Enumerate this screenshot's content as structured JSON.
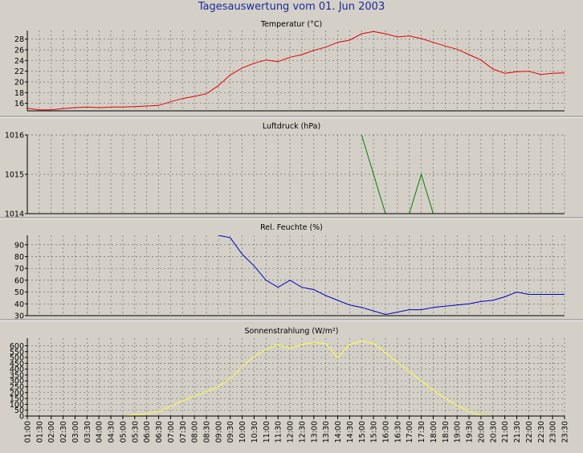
{
  "title": "Tagesauswertung vom 01. Jun 2003",
  "x_ticks": [
    "01:00",
    "01:30",
    "02:00",
    "02:30",
    "03:00",
    "03:30",
    "04:00",
    "04:30",
    "05:00",
    "05:30",
    "06:00",
    "06:30",
    "07:00",
    "07:30",
    "08:00",
    "08:30",
    "09:00",
    "09:30",
    "10:00",
    "10:30",
    "11:00",
    "11:30",
    "12:00",
    "12:30",
    "13:00",
    "13:30",
    "14:00",
    "14:30",
    "15:00",
    "15:30",
    "16:00",
    "16:30",
    "17:00",
    "17:30",
    "18:00",
    "18:30",
    "19:00",
    "19:30",
    "20:00",
    "20:30",
    "21:00",
    "21:30",
    "22:00",
    "22:30",
    "23:00",
    "23:30"
  ],
  "chart_data": [
    {
      "type": "line",
      "title": "Temperatur (°C)",
      "color": "#e00000",
      "yticks": [
        16,
        18,
        20,
        22,
        24,
        26,
        28
      ],
      "ylim": [
        14.6,
        29.6
      ],
      "xlim": [
        "01:00",
        "23:30"
      ],
      "grid": true,
      "series": [
        {
          "x": [
            "00:30",
            "01:00",
            "01:30",
            "02:00",
            "02:30",
            "03:00",
            "03:30",
            "04:00",
            "04:30",
            "05:00",
            "05:30",
            "06:00",
            "06:30",
            "07:00",
            "07:30",
            "08:00",
            "08:30",
            "09:00",
            "09:30",
            "10:00",
            "10:30",
            "11:00",
            "11:30",
            "12:00",
            "12:30",
            "13:00",
            "13:30",
            "14:00",
            "14:30",
            "15:00",
            "15:30",
            "16:00",
            "16:30",
            "17:00",
            "17:30",
            "18:00",
            "18:30",
            "19:00",
            "19:30",
            "20:00",
            "20:30",
            "21:00",
            "21:30",
            "22:00",
            "22:30",
            "23:00",
            "23:30"
          ],
          "values": [
            15.4,
            15.1,
            14.8,
            14.8,
            15.0,
            15.2,
            15.3,
            15.2,
            15.3,
            15.3,
            15.4,
            15.5,
            15.6,
            16.3,
            16.9,
            17.3,
            17.8,
            19.3,
            21.3,
            22.6,
            23.5,
            24.1,
            23.8,
            24.6,
            25.1,
            25.9,
            26.5,
            27.4,
            27.8,
            29.0,
            29.4,
            29.0,
            28.4,
            28.6,
            28.1,
            27.4,
            26.7,
            26.1,
            25.1,
            24.1,
            22.4,
            21.6,
            21.9,
            22.0,
            21.4,
            21.6,
            21.7
          ]
        }
      ]
    },
    {
      "type": "line",
      "title": "Luftdruck (hPa)",
      "color": "#008000",
      "yticks": [
        1014,
        1015,
        1016
      ],
      "ylim": [
        1014,
        1016
      ],
      "xlim": [
        "01:00",
        "23:30"
      ],
      "grid": true,
      "series": [
        {
          "x": [
            "15:00",
            "16:00"
          ],
          "values": [
            1016,
            1014
          ]
        },
        {
          "x": [
            "17:00",
            "17:30",
            "18:00"
          ],
          "values": [
            1014,
            1015,
            1014
          ]
        }
      ]
    },
    {
      "type": "line",
      "title": "Rel. Feuchte (%)",
      "color": "#0000c0",
      "yticks": [
        30,
        40,
        50,
        60,
        70,
        80,
        90
      ],
      "ylim": [
        30,
        98
      ],
      "xlim": [
        "01:00",
        "23:30"
      ],
      "grid": true,
      "series": [
        {
          "x": [
            "09:00",
            "09:30",
            "10:00",
            "10:30",
            "11:00",
            "11:30",
            "12:00",
            "12:30",
            "13:00",
            "13:30",
            "14:00",
            "14:30",
            "15:00",
            "15:30",
            "16:00",
            "16:30",
            "17:00",
            "17:30",
            "18:00",
            "18:30",
            "19:00",
            "19:30",
            "20:00",
            "20:30",
            "21:00",
            "21:30",
            "22:00",
            "22:30",
            "23:00",
            "23:30"
          ],
          "values": [
            98,
            96,
            82,
            72,
            60,
            54,
            60,
            54,
            52,
            47,
            43,
            39,
            37,
            34,
            31,
            33,
            35,
            35,
            37,
            38,
            39,
            40,
            42,
            43,
            46,
            50,
            48,
            48,
            48,
            48
          ]
        }
      ]
    },
    {
      "type": "line",
      "title": "Sonnenstrahlung (W/m²)",
      "color": "#ffff40",
      "yticks": [
        0,
        50,
        100,
        150,
        200,
        250,
        300,
        350,
        400,
        450,
        500,
        550,
        600
      ],
      "ylim": [
        0,
        665
      ],
      "xlim": [
        "01:00",
        "23:30"
      ],
      "grid": true,
      "series": [
        {
          "x": [
            "05:00",
            "05:30",
            "06:00",
            "06:30",
            "07:00",
            "07:30",
            "08:00",
            "08:30",
            "09:00",
            "09:30",
            "10:00",
            "10:30",
            "11:00",
            "11:30",
            "12:00",
            "12:30",
            "13:00",
            "13:30",
            "14:00",
            "14:30",
            "15:00",
            "15:30",
            "16:00",
            "16:30",
            "17:00",
            "17:30",
            "18:00",
            "18:30",
            "19:00",
            "19:30",
            "20:00",
            "20:30"
          ],
          "values": [
            0,
            10,
            20,
            40,
            80,
            130,
            170,
            210,
            250,
            320,
            420,
            510,
            570,
            610,
            580,
            610,
            630,
            620,
            500,
            610,
            640,
            620,
            540,
            460,
            380,
            300,
            220,
            150,
            90,
            40,
            5,
            0
          ]
        }
      ]
    }
  ]
}
